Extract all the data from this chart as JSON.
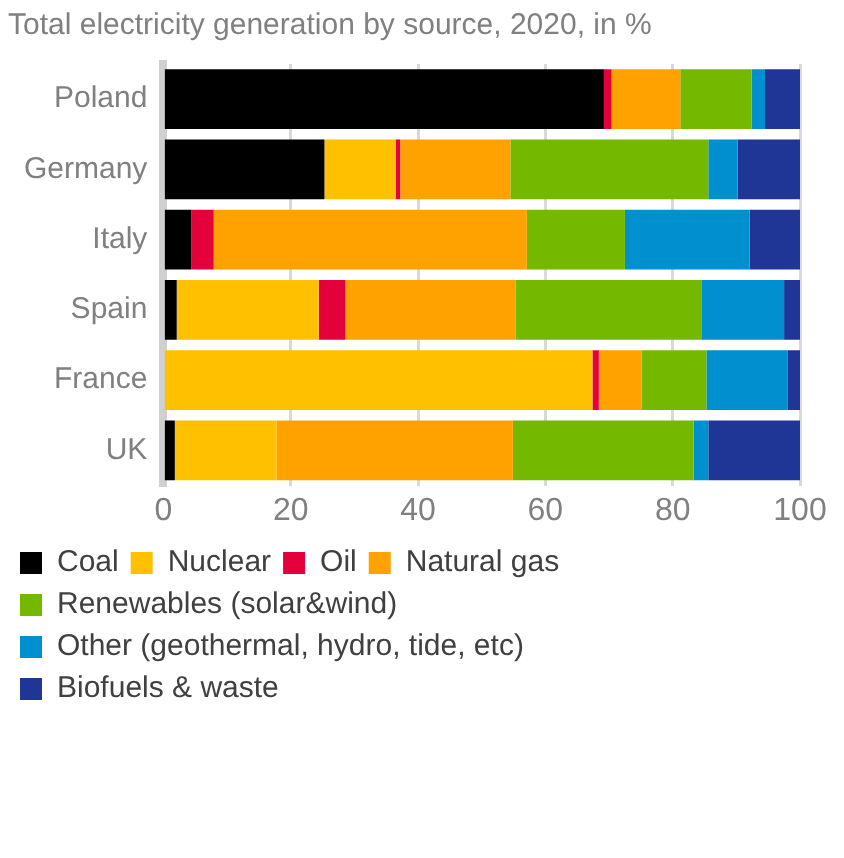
{
  "chart_data": {
    "type": "bar",
    "orientation": "horizontal",
    "stacked": true,
    "title": "Total electricity generation by source, 2020, in %",
    "categories": [
      "Poland",
      "Germany",
      "Italy",
      "Spain",
      "France",
      "UK"
    ],
    "series": [
      {
        "name": "Coal",
        "color": "#000000",
        "values": [
          69.2,
          25.3,
          4.4,
          2.1,
          0,
          1.8
        ]
      },
      {
        "name": "Nuclear",
        "color": "#ffc000",
        "values": [
          0,
          11.2,
          0,
          22.3,
          67.4,
          16.0
        ]
      },
      {
        "name": "Oil",
        "color": "#e4003a",
        "values": [
          1.2,
          0.7,
          3.5,
          4.2,
          1.0,
          0
        ]
      },
      {
        "name": "Natural gas",
        "color": "#ffa200",
        "values": [
          10.8,
          17.3,
          49.2,
          26.7,
          6.7,
          37.1
        ]
      },
      {
        "name": "Renewables (solar&wind)",
        "color": "#74b800",
        "values": [
          11.2,
          31.1,
          15.4,
          29.3,
          10.2,
          28.4
        ]
      },
      {
        "name": "Other (geothermal, hydro, tide, etc)",
        "color": "#008fcf",
        "values": [
          2.1,
          4.6,
          19.6,
          12.9,
          12.8,
          2.3
        ]
      },
      {
        "name": "Biofuels & waste",
        "color": "#1f3696",
        "values": [
          5.5,
          9.8,
          7.9,
          2.5,
          1.9,
          14.4
        ]
      }
    ],
    "xlim": [
      0,
      100
    ],
    "xticks": [
      0,
      20,
      40,
      60,
      80,
      100
    ],
    "grid": "x",
    "legend": "bottom"
  }
}
